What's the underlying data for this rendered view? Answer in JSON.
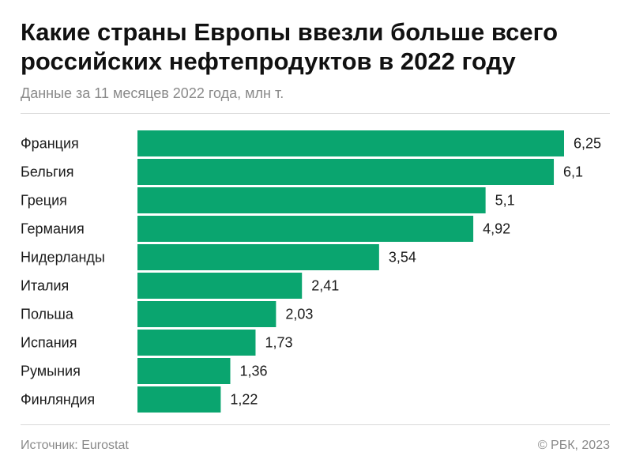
{
  "title": "Какие страны Европы ввезли больше всего российских нефтепродуктов в 2022 году",
  "subtitle": "Данные за 11 месяцев 2022 года, млн т.",
  "source": "Источник: Eurostat",
  "credit": "© РБК, 2023",
  "chart_data": {
    "type": "bar",
    "orientation": "horizontal",
    "categories": [
      "Франция",
      "Бельгия",
      "Греция",
      "Германия",
      "Нидерланды",
      "Италия",
      "Польша",
      "Испания",
      "Румыния",
      "Финляндия"
    ],
    "values": [
      6.25,
      6.1,
      5.1,
      4.92,
      3.54,
      2.41,
      2.03,
      1.73,
      1.36,
      1.22
    ],
    "value_labels": [
      "6,25",
      "6,1",
      "5,1",
      "4,92",
      "3,54",
      "2,41",
      "2,03",
      "1,73",
      "1,36",
      "1,22"
    ],
    "xlim": [
      0,
      6.25
    ],
    "grid": false,
    "bar_color": "#0aa56f"
  }
}
